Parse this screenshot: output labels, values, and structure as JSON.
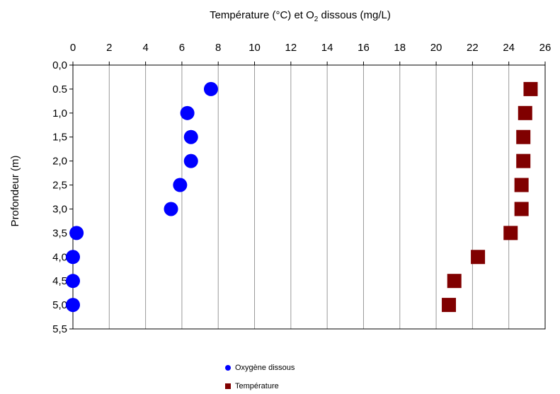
{
  "chart_data": {
    "type": "scatter",
    "title": "Température (°C) et O₂ dissous (mg/L)",
    "title_parts": {
      "before": "Température (°C) et O",
      "subscript": "2",
      "after": " dissous (mg/L)"
    },
    "xlabel": "Température (°C) et O₂ dissous (mg/L)",
    "ylabel": "Profondeur (m)",
    "xlim": [
      0,
      26
    ],
    "ylim": [
      0,
      5.5
    ],
    "y_inverted": true,
    "x_axis_position": "top",
    "grid": "vertical",
    "legend_position": "bottom",
    "x_ticks": [
      "0",
      "2",
      "4",
      "6",
      "8",
      "10",
      "12",
      "14",
      "16",
      "18",
      "20",
      "22",
      "24",
      "26"
    ],
    "y_ticks": [
      "0,0",
      "0.5",
      "1,0",
      "1,5",
      "2,0",
      "2,5",
      "3,0",
      "3,5",
      "4,0",
      "4,5",
      "5,0",
      "5,5"
    ],
    "series": [
      {
        "name": "Oxygène dissous",
        "marker": "circle",
        "color": "#0000ff",
        "points": [
          {
            "x": 7.6,
            "y": 0.5
          },
          {
            "x": 6.3,
            "y": 1.0
          },
          {
            "x": 6.5,
            "y": 1.5
          },
          {
            "x": 6.5,
            "y": 2.0
          },
          {
            "x": 5.9,
            "y": 2.5
          },
          {
            "x": 5.4,
            "y": 3.0
          },
          {
            "x": 0.2,
            "y": 3.5
          },
          {
            "x": 0.0,
            "y": 4.0
          },
          {
            "x": 0.0,
            "y": 4.5
          },
          {
            "x": 0.0,
            "y": 5.0
          }
        ]
      },
      {
        "name": "Température",
        "marker": "square",
        "color": "#800000",
        "points": [
          {
            "x": 25.2,
            "y": 0.5
          },
          {
            "x": 24.9,
            "y": 1.0
          },
          {
            "x": 24.8,
            "y": 1.5
          },
          {
            "x": 24.8,
            "y": 2.0
          },
          {
            "x": 24.7,
            "y": 2.5
          },
          {
            "x": 24.7,
            "y": 3.0
          },
          {
            "x": 24.1,
            "y": 3.5
          },
          {
            "x": 22.3,
            "y": 4.0
          },
          {
            "x": 21.0,
            "y": 4.5
          },
          {
            "x": 20.7,
            "y": 5.0
          }
        ]
      }
    ]
  }
}
